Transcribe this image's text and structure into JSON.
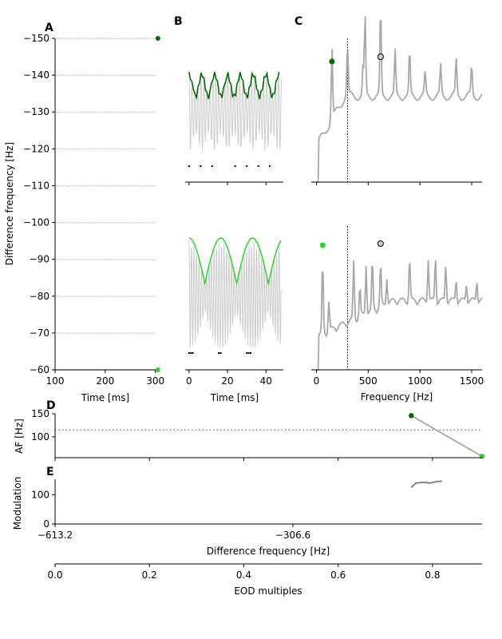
{
  "colors": {
    "dark_green": "#006400",
    "light_green": "#33cc33",
    "gray": "#a8a8a8",
    "light_gray": "#cccccc",
    "black": "#000000"
  },
  "panels": {
    "A": "A",
    "B": "B",
    "C": "C",
    "D": "D",
    "E": "E"
  },
  "chart_data": [
    {
      "id": "A",
      "type": "scatter",
      "xlabel": "Time [ms]",
      "ylabel": "Difference frequency [Hz]",
      "xlim": [
        100,
        310
      ],
      "ylim": [
        -150,
        -60
      ],
      "xticks": [
        100,
        200,
        300
      ],
      "xtick_labels": [
        "100",
        "200",
        "300"
      ],
      "yticks": [
        -150,
        -140,
        -130,
        -120,
        -110,
        -100,
        -90,
        -80,
        -70,
        -60
      ],
      "ytick_labels": [
        "−150",
        "−140",
        "−130",
        "−120",
        "−110",
        "−100",
        "−90",
        "−80",
        "−70",
        "−60"
      ],
      "rows": [
        -150,
        -140,
        -130,
        -120,
        -110,
        -100,
        -90,
        -80,
        -70,
        -60
      ],
      "row_xrange": [
        100,
        300
      ],
      "markers": [
        {
          "x": 305,
          "y": -150,
          "color": "dark_green"
        },
        {
          "x": 305,
          "y": -60,
          "color": "light_green"
        }
      ]
    },
    {
      "id": "B",
      "type": "line",
      "xlabel": "Time [ms]",
      "xlim": [
        -2,
        49
      ],
      "xticks": [
        0,
        20,
        40
      ],
      "xtick_labels": [
        "0",
        "20",
        "40"
      ],
      "top": {
        "df_hz": -150,
        "envelope_color": "dark_green"
      },
      "bottom": {
        "df_hz": -60,
        "envelope_color": "light_green"
      }
    },
    {
      "id": "C",
      "type": "line",
      "xlabel": "Frequency [Hz]",
      "xlim": [
        -50,
        1600
      ],
      "xticks": [
        0,
        500,
        1000,
        1500
      ],
      "xtick_labels": [
        "0",
        "500",
        "1000",
        "1500"
      ],
      "eod_line_hz": 300,
      "top": {
        "peak_hz": 150,
        "peak_color": "dark_green",
        "second_peak_hz": 620
      },
      "bottom": {
        "peak_hz": 60,
        "peak_color": "light_green",
        "second_peak_hz": 620
      }
    },
    {
      "id": "D",
      "type": "line",
      "ylabel": "AF [Hz]",
      "ylim": [
        55,
        150
      ],
      "yticks": [
        100,
        150
      ],
      "ytick_labels": [
        "100",
        "150"
      ],
      "reference_level": 115,
      "series": [
        {
          "name": "AF",
          "x": [
            0.755,
            0.905
          ],
          "y": [
            146,
            58
          ]
        }
      ],
      "markers": [
        {
          "x": 0.755,
          "y": 146,
          "color": "dark_green"
        },
        {
          "x": 0.905,
          "y": 58,
          "color": "light_green"
        }
      ]
    },
    {
      "id": "E",
      "type": "line",
      "ylabel": "Modulation",
      "xlabel": "Difference frequency [Hz]",
      "ylim": [
        0,
        150
      ],
      "yticks": [
        0,
        100
      ],
      "ytick_labels": [
        "0",
        "100"
      ],
      "xtick_labels": [
        "−613.2",
        "−306.6"
      ],
      "series": [
        {
          "name": "modulation",
          "x": [
            0.755,
            0.765,
            0.78,
            0.795,
            0.81,
            0.82
          ],
          "y": [
            125,
            140,
            142,
            140,
            145,
            146
          ]
        }
      ]
    },
    {
      "id": "EOD",
      "type": "axis",
      "xlabel": "EOD multiples",
      "xlim": [
        0,
        0.905
      ],
      "xticks": [
        0.0,
        0.2,
        0.4,
        0.6,
        0.8
      ],
      "xtick_labels": [
        "0.0",
        "0.2",
        "0.4",
        "0.6",
        "0.8"
      ]
    }
  ]
}
